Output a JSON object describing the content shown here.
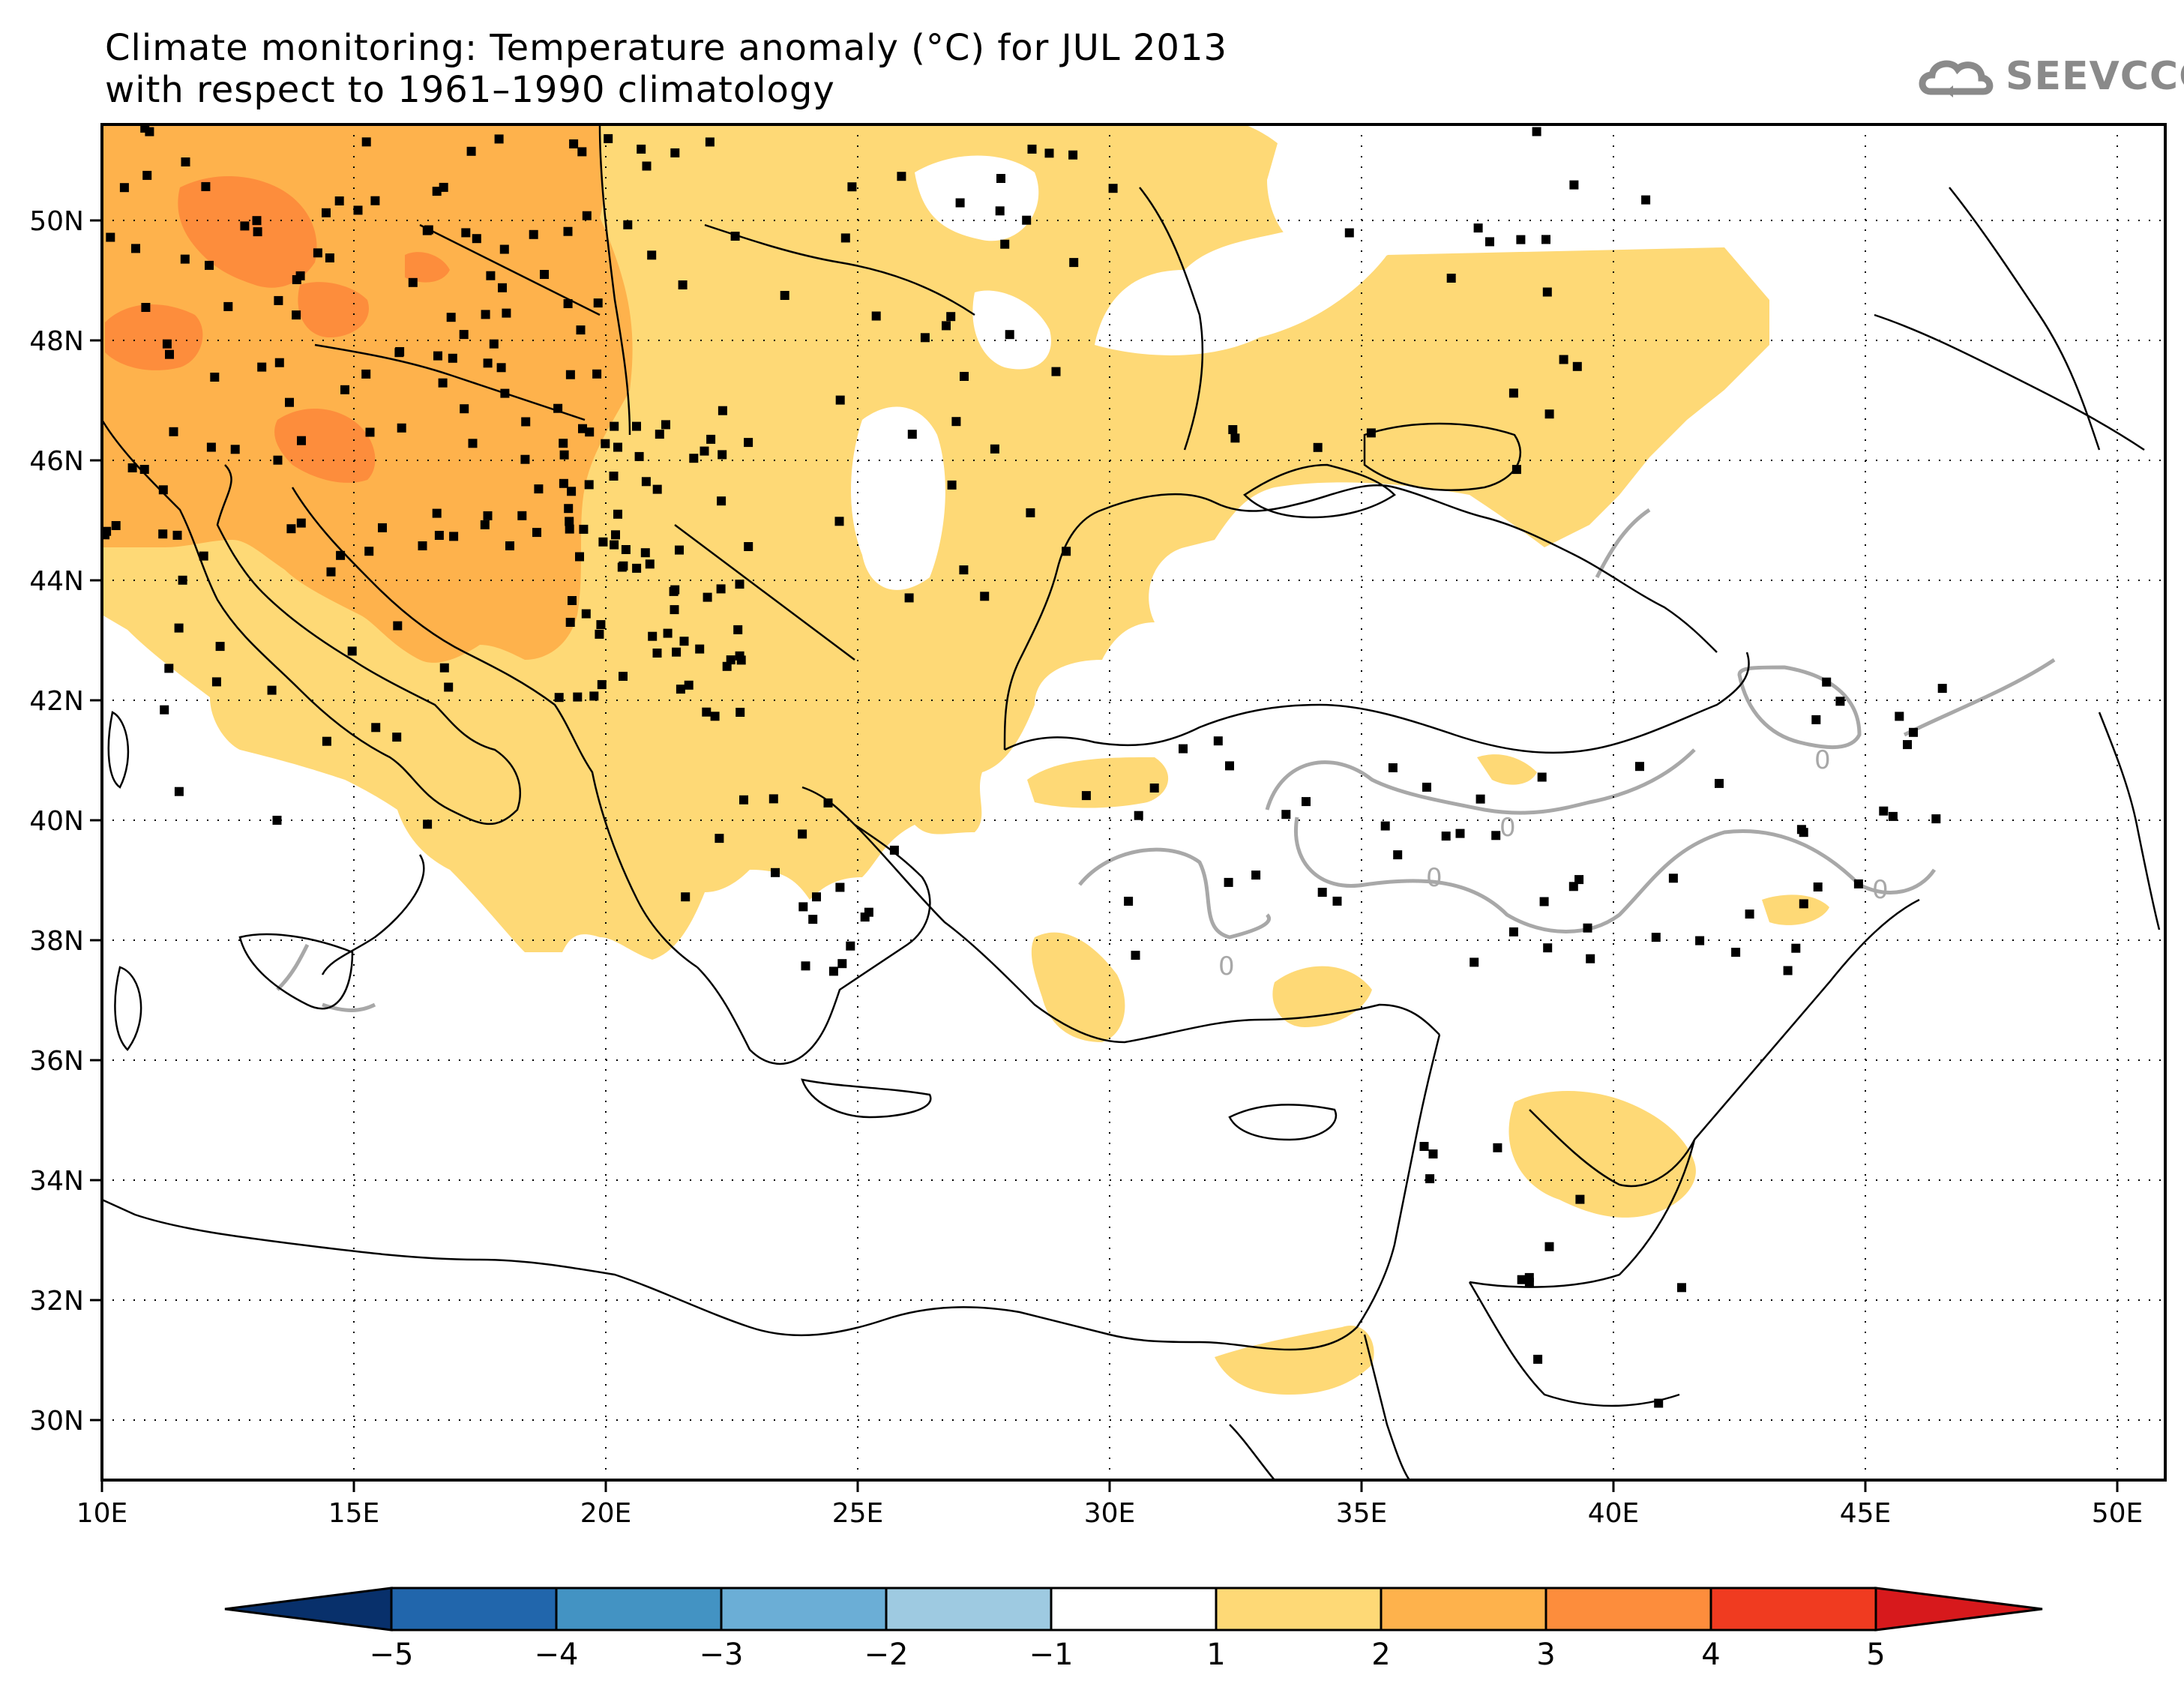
{
  "title": {
    "line1": "Climate monitoring: Temperature anomaly (°C) for JUL 2013",
    "line2": "with respect to 1961–1990 climatology"
  },
  "logo": {
    "text": "SEEVCCC",
    "icon": "cloud-icon",
    "color": "#8a8a8a"
  },
  "map": {
    "lon_range": [
      10,
      51
    ],
    "lat_range": [
      29,
      51.5
    ],
    "lon_ticks": [
      "10E",
      "15E",
      "20E",
      "25E",
      "30E",
      "35E",
      "40E",
      "45E",
      "50E"
    ],
    "lat_ticks": [
      "30N",
      "32N",
      "34N",
      "36N",
      "38N",
      "40N",
      "42N",
      "44N",
      "46N",
      "48N",
      "50N"
    ],
    "contour_label": "0",
    "station_marker": "black-square"
  },
  "colorbar": {
    "labels": [
      "−5",
      "−4",
      "−3",
      "−2",
      "−1",
      "1",
      "2",
      "3",
      "4",
      "5"
    ],
    "colors": [
      "#08306b",
      "#2166ac",
      "#4393c3",
      "#6baed6",
      "#9ecae1",
      "#ffffff",
      "#fed976",
      "#feb24c",
      "#fd8d3c",
      "#f03b20",
      "#d7191c"
    ]
  },
  "anomaly_colors": {
    "c1_2": "#fed976",
    "c2_3": "#feb24c",
    "c3_4": "#fd8d3c",
    "contour": "#a8a8a8"
  }
}
